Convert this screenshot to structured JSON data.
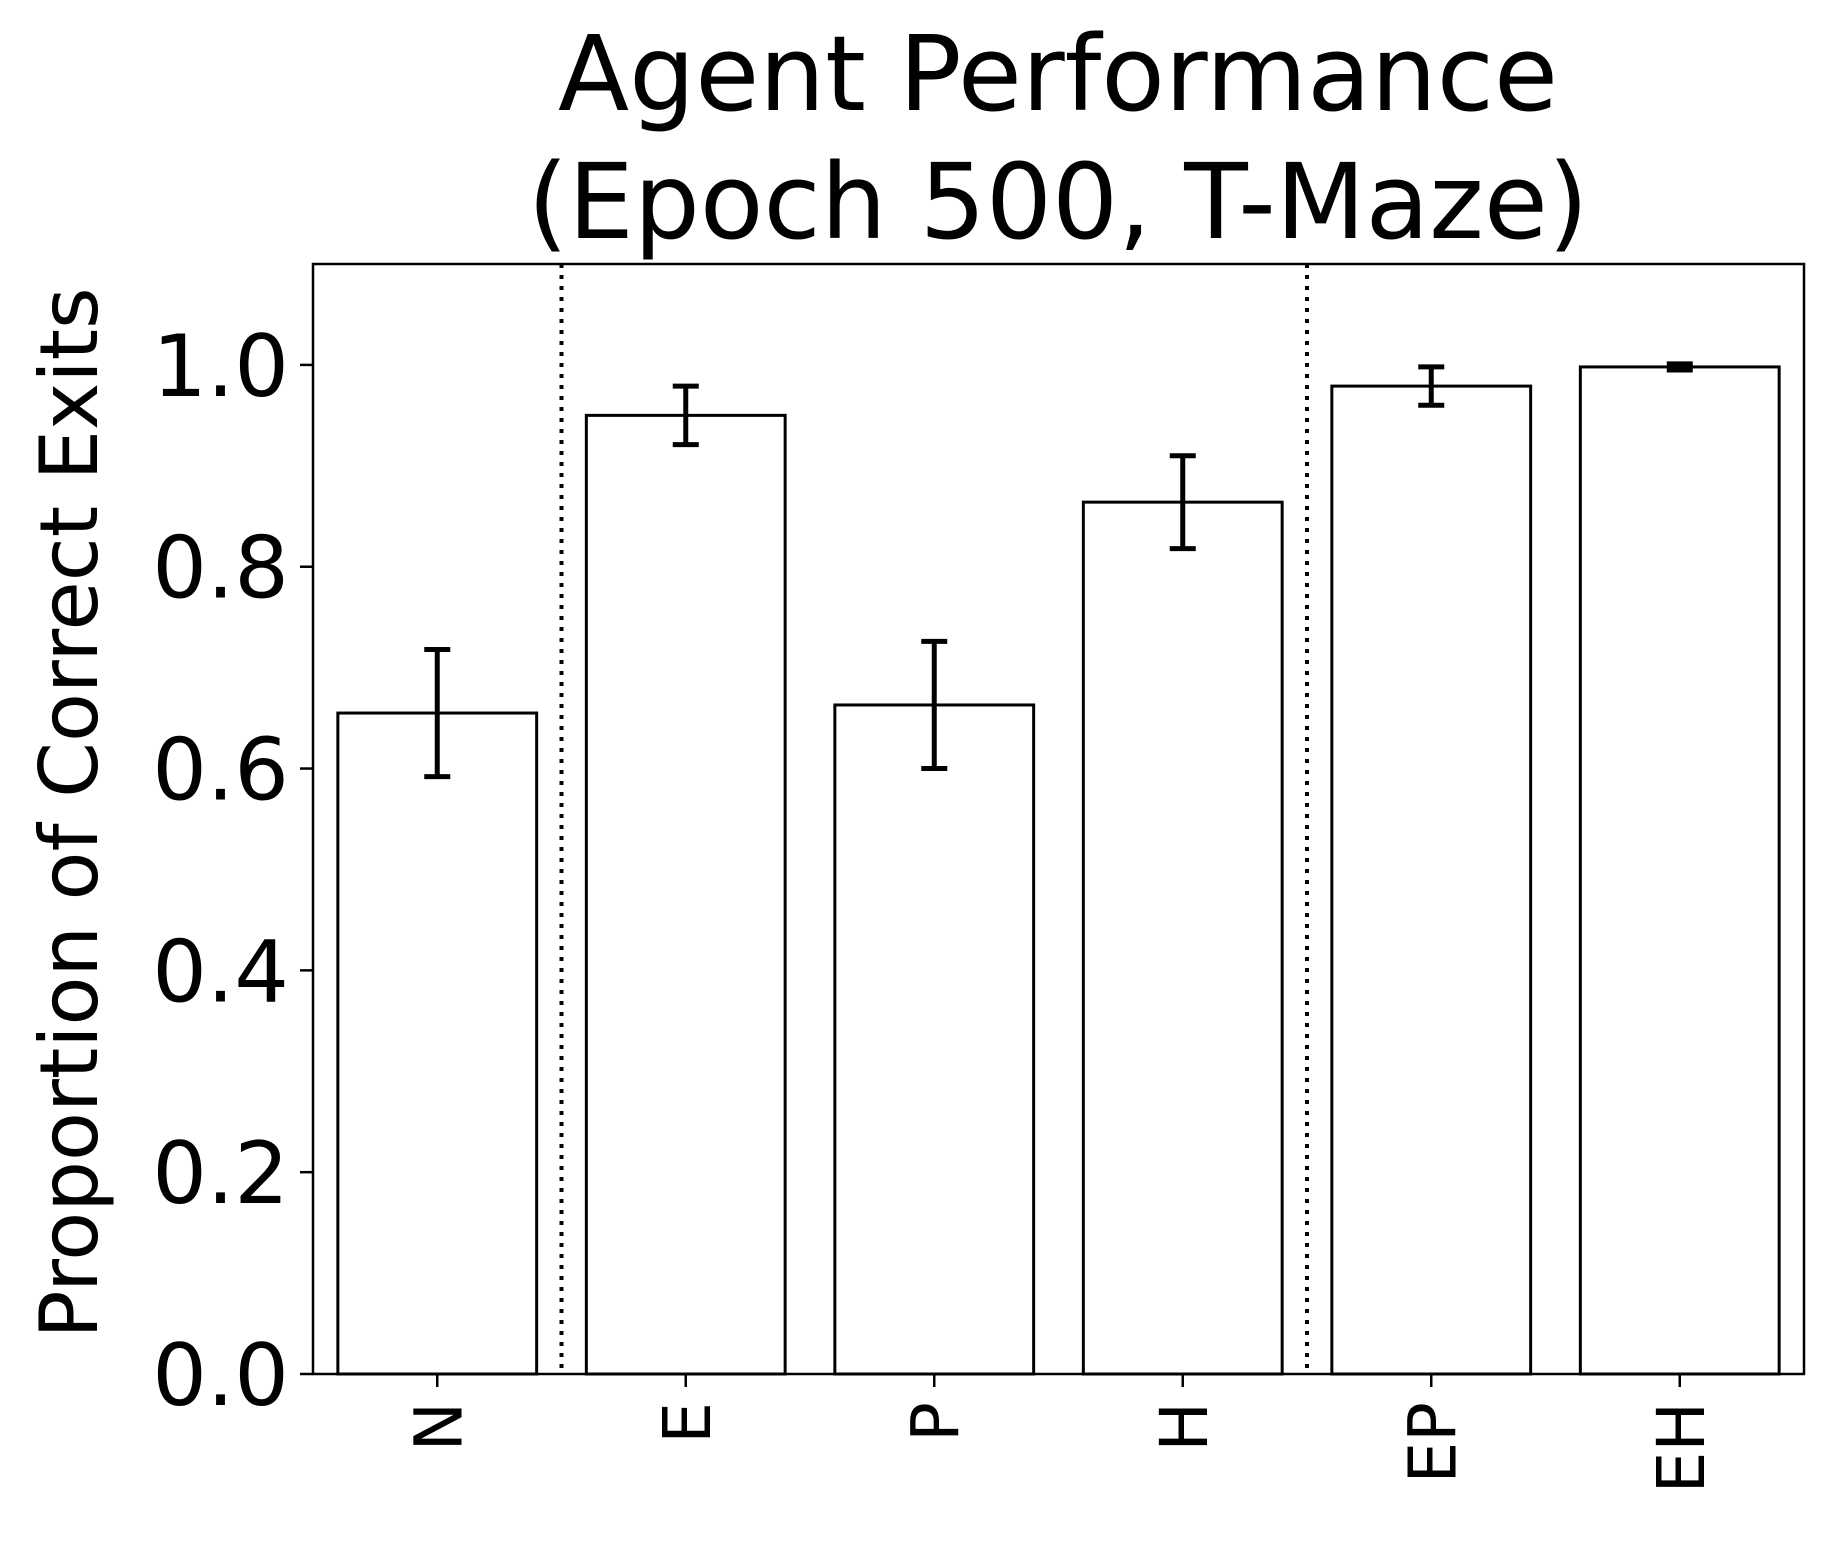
{
  "chart_data": {
    "type": "bar",
    "title": [
      "Agent Performance",
      "(Epoch 500, T-Maze)"
    ],
    "xlabel": "",
    "ylabel": "Proportion of Correct Exits",
    "categories": [
      "N",
      "E",
      "P",
      "H",
      "EP",
      "EH"
    ],
    "values": [
      0.655,
      0.95,
      0.663,
      0.864,
      0.979,
      0.998
    ],
    "error": [
      0.063,
      0.029,
      0.063,
      0.046,
      0.019,
      0.003
    ],
    "ylim": [
      0,
      1.1
    ],
    "yticks": [
      "0.0",
      "0.2",
      "0.4",
      "0.6",
      "0.8",
      "1.0"
    ],
    "separators_after_index": [
      0,
      3
    ],
    "separator_style": "dotted",
    "bar_fill": "#ffffff",
    "bar_edge": "#000000",
    "grid": false,
    "legend": "none"
  }
}
